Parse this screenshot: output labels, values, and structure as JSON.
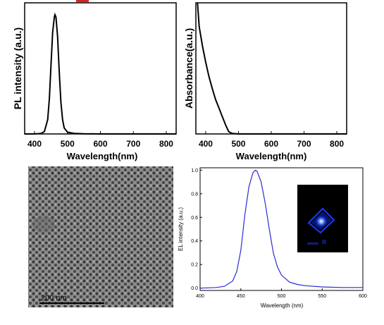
{
  "chart_data": [
    {
      "type": "line",
      "panel": "top-left",
      "xlabel": "Wavelength(nm)",
      "ylabel": "PL intensity (a.u.)",
      "xlim": [
        370,
        830
      ],
      "ylim": [
        0,
        1.1
      ],
      "x_ticks": [
        400,
        500,
        600,
        700,
        800
      ],
      "y_ticks_labeled": false,
      "grid": false,
      "series": [
        {
          "color": "#000000",
          "x": [
            370,
            400,
            420,
            430,
            440,
            445,
            450,
            455,
            460,
            462,
            465,
            470,
            475,
            480,
            485,
            490,
            500,
            520,
            550,
            600,
            650,
            700,
            750,
            800,
            830
          ],
          "y": [
            0.0,
            0.0,
            0.005,
            0.02,
            0.12,
            0.3,
            0.58,
            0.85,
            0.98,
            1.0,
            0.98,
            0.82,
            0.52,
            0.27,
            0.12,
            0.05,
            0.015,
            0.005,
            0.002,
            0.0,
            0.0,
            0.0,
            0.0,
            0.0,
            0.0
          ]
        }
      ]
    },
    {
      "type": "line",
      "panel": "top-right",
      "xlabel": "Wavelength(nm)",
      "ylabel": "Absorbance(a.u.)",
      "xlim": [
        370,
        830
      ],
      "ylim": [
        0,
        1.1
      ],
      "x_ticks": [
        400,
        500,
        600,
        700,
        800
      ],
      "y_ticks_labeled": false,
      "grid": false,
      "series": [
        {
          "color": "#000000",
          "x": [
            375,
            380,
            390,
            400,
            410,
            420,
            430,
            440,
            450,
            460,
            470,
            480,
            500,
            550,
            600,
            700,
            800,
            830
          ],
          "y": [
            1.1,
            0.9,
            0.74,
            0.6,
            0.48,
            0.38,
            0.29,
            0.22,
            0.15,
            0.08,
            0.02,
            0.005,
            0.0,
            0.0,
            0.0,
            0.0,
            0.0,
            0.0
          ]
        }
      ]
    },
    {
      "type": "line",
      "panel": "bottom-right",
      "xlabel": "Wavelength (nm)",
      "ylabel": "EL intensity (a.u.)",
      "xlim": [
        400,
        600
      ],
      "ylim": [
        -0.02,
        1.02
      ],
      "x_ticks": [
        400,
        450,
        500,
        550,
        600
      ],
      "y_ticks": [
        0.0,
        0.2,
        0.4,
        0.6,
        0.8,
        1.0
      ],
      "y_tick_labels": [
        "0.0",
        "0.2",
        "0.4",
        "0.6",
        "0.8",
        "1.0"
      ],
      "grid": false,
      "series": [
        {
          "color": "#2b2bd6",
          "x": [
            400,
            420,
            430,
            440,
            445,
            450,
            455,
            460,
            465,
            468,
            470,
            475,
            480,
            485,
            490,
            495,
            500,
            510,
            520,
            530,
            550,
            575,
            600
          ],
          "y": [
            0.0,
            0.005,
            0.015,
            0.06,
            0.14,
            0.32,
            0.62,
            0.86,
            0.98,
            1.0,
            0.99,
            0.9,
            0.72,
            0.5,
            0.3,
            0.18,
            0.11,
            0.05,
            0.03,
            0.02,
            0.01,
            0.005,
            0.005
          ]
        }
      ]
    }
  ],
  "sem_image": {
    "scale_bar_label": "200 nm"
  },
  "inset_photo": {
    "description_icon": "device-photo"
  }
}
